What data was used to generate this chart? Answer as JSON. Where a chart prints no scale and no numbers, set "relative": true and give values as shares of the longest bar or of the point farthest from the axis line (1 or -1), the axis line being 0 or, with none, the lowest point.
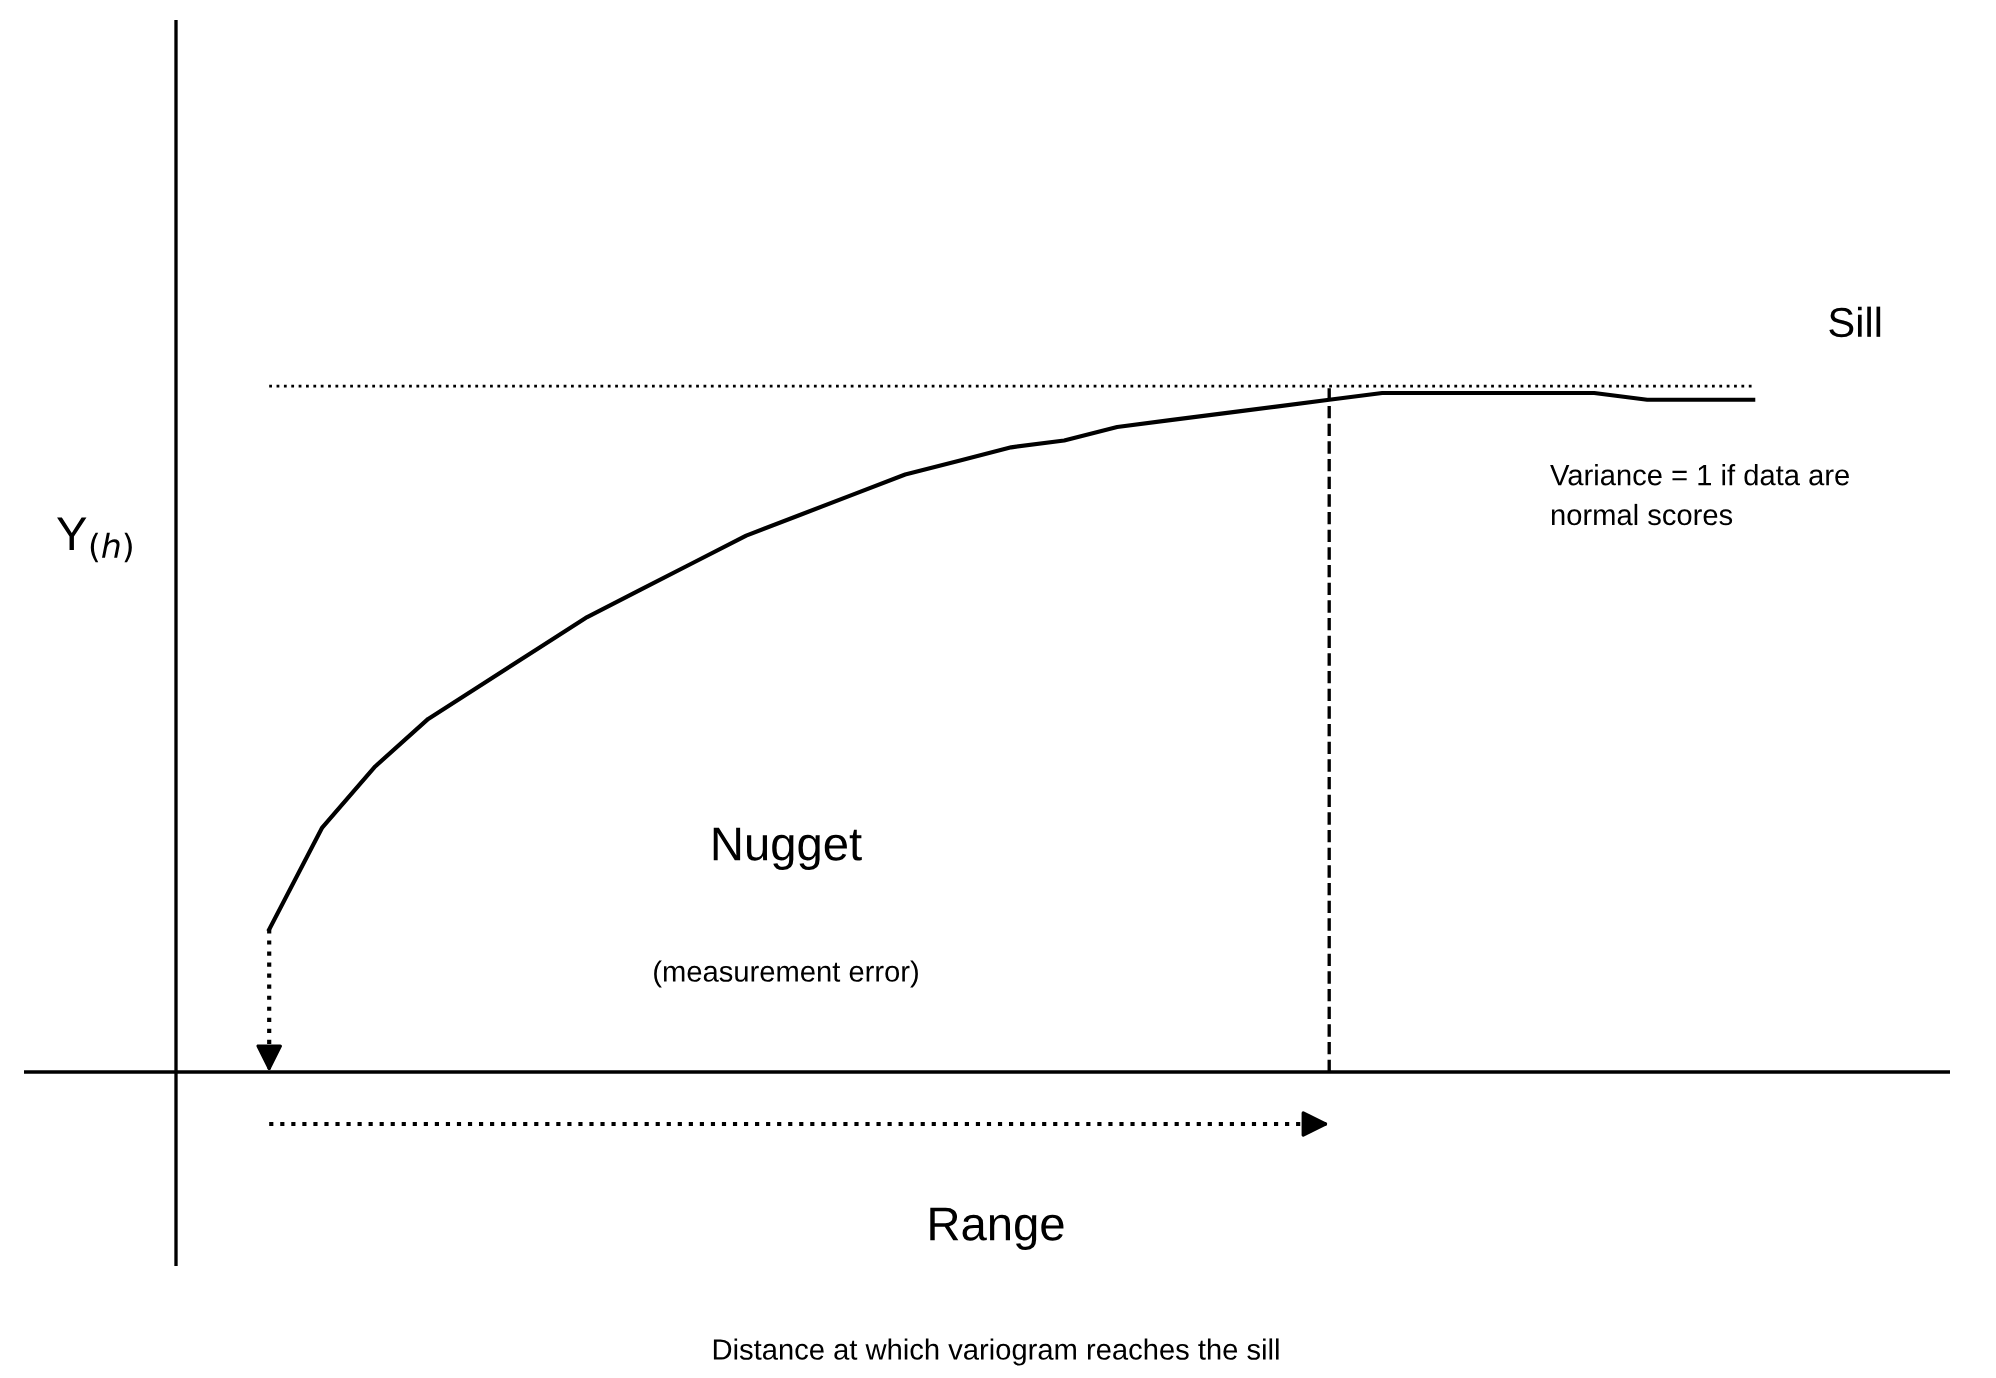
{
  "chart_data": {
    "type": "line",
    "relative": true,
    "ylabel": "Y$_{(h)}$",
    "color": "#000000",
    "tick_labels": false,
    "categories": [
      null,
      null,
      null,
      null,
      null,
      null,
      null,
      null,
      null,
      null,
      null,
      null,
      null,
      null,
      null,
      null,
      null,
      null,
      null,
      null,
      null,
      null,
      null,
      null,
      null,
      null,
      null,
      null,
      null
    ],
    "values": [
      0.21,
      0.36,
      0.45,
      0.52,
      0.57,
      0.62,
      0.67,
      0.71,
      0.75,
      0.79,
      0.82,
      0.85,
      0.88,
      0.9,
      0.92,
      0.93,
      0.95,
      0.96,
      0.97,
      0.98,
      0.99,
      1.0,
      1.0,
      1.0,
      1.0,
      1.0,
      0.99,
      0.99,
      0.99
    ],
    "ref_lines": [
      {
        "axis": "y",
        "value": 1.01,
        "label": "Sill",
        "line_style": "dotted"
      }
    ],
    "annotations": [
      "Variance = 1 if data are\nnormal scores",
      "Nugget",
      "(measurement error)",
      "Range",
      "Distance at which variogram reaches the sill"
    ]
  }
}
